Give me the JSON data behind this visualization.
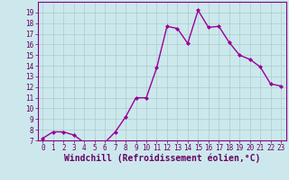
{
  "x": [
    0,
    1,
    2,
    3,
    4,
    5,
    6,
    7,
    8,
    9,
    10,
    11,
    12,
    13,
    14,
    15,
    16,
    17,
    18,
    19,
    20,
    21,
    22,
    23
  ],
  "y": [
    7.2,
    7.8,
    7.8,
    7.5,
    6.8,
    6.7,
    6.8,
    7.8,
    9.2,
    11.0,
    11.0,
    13.8,
    17.7,
    17.5,
    16.1,
    19.2,
    17.6,
    17.7,
    16.2,
    15.0,
    14.6,
    13.9,
    12.3,
    12.1
  ],
  "line_color": "#990099",
  "marker": "D",
  "marker_size": 2,
  "linewidth": 1.0,
  "xlabel": "Windchill (Refroidissement éolien,°C)",
  "ylim": [
    7,
    20
  ],
  "xlim": [
    -0.5,
    23.5
  ],
  "yticks": [
    7,
    8,
    9,
    10,
    11,
    12,
    13,
    14,
    15,
    16,
    17,
    18,
    19
  ],
  "xticks": [
    0,
    1,
    2,
    3,
    4,
    5,
    6,
    7,
    8,
    9,
    10,
    11,
    12,
    13,
    14,
    15,
    16,
    17,
    18,
    19,
    20,
    21,
    22,
    23
  ],
  "bg_color": "#cce8ec",
  "grid_color": "#aacccc",
  "line_purple": "#880088",
  "tick_label_color": "#660066",
  "xlabel_color": "#660066",
  "tick_fontsize": 5.5,
  "xlabel_fontsize": 7.0
}
